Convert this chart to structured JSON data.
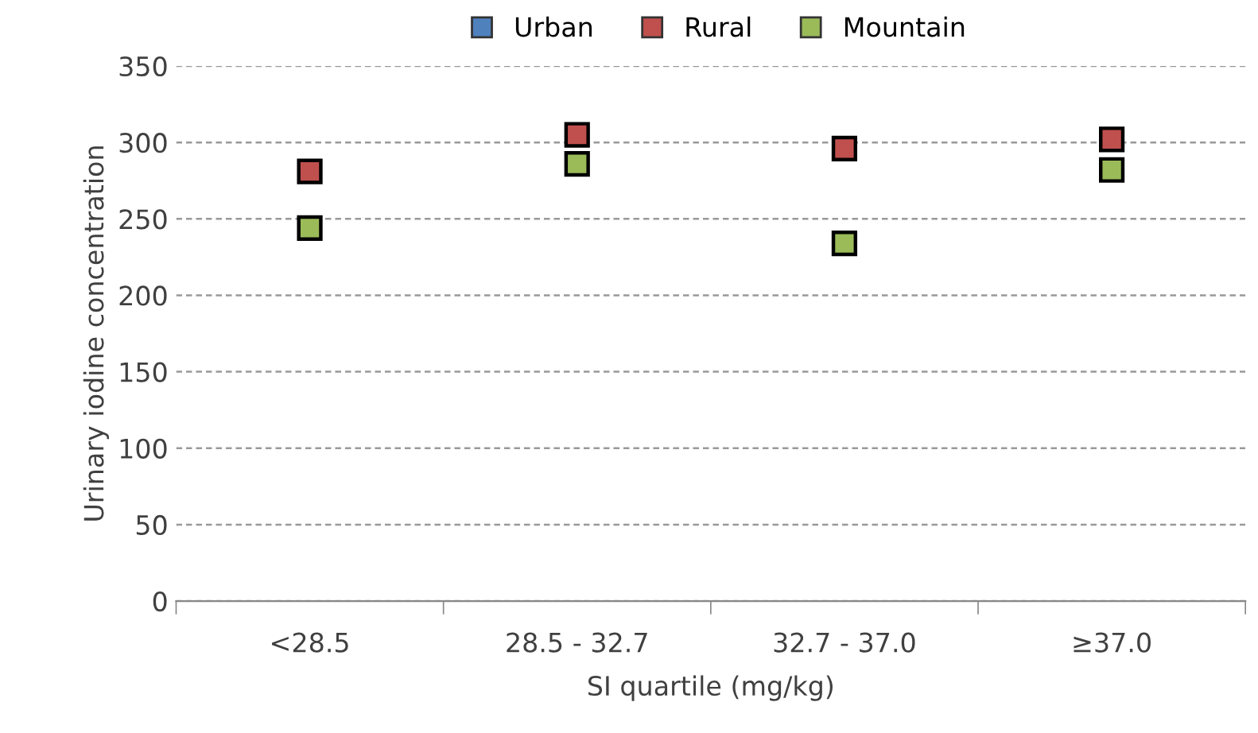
{
  "chart_data": {
    "type": "scatter",
    "xlabel": "SI quartile (mg/kg)",
    "ylabel": "Urinary iodine concentration",
    "categories": [
      "<28.5",
      "28.5 - 32.7",
      "32.7 - 37.0",
      "≥37.0"
    ],
    "series": [
      {
        "name": "Urban",
        "color": "#4f81bd",
        "values": [
          null,
          null,
          null,
          null
        ]
      },
      {
        "name": "Rural",
        "color": "#c0504d",
        "values": [
          281,
          305,
          296,
          302
        ]
      },
      {
        "name": "Mountain",
        "color": "#9bbb59",
        "values": [
          244,
          286,
          234,
          282
        ]
      }
    ],
    "ylim": [
      0,
      350
    ],
    "yticks": [
      0,
      50,
      100,
      150,
      200,
      250,
      300,
      350
    ],
    "grid": "y",
    "legend": "top",
    "marker": "square"
  }
}
